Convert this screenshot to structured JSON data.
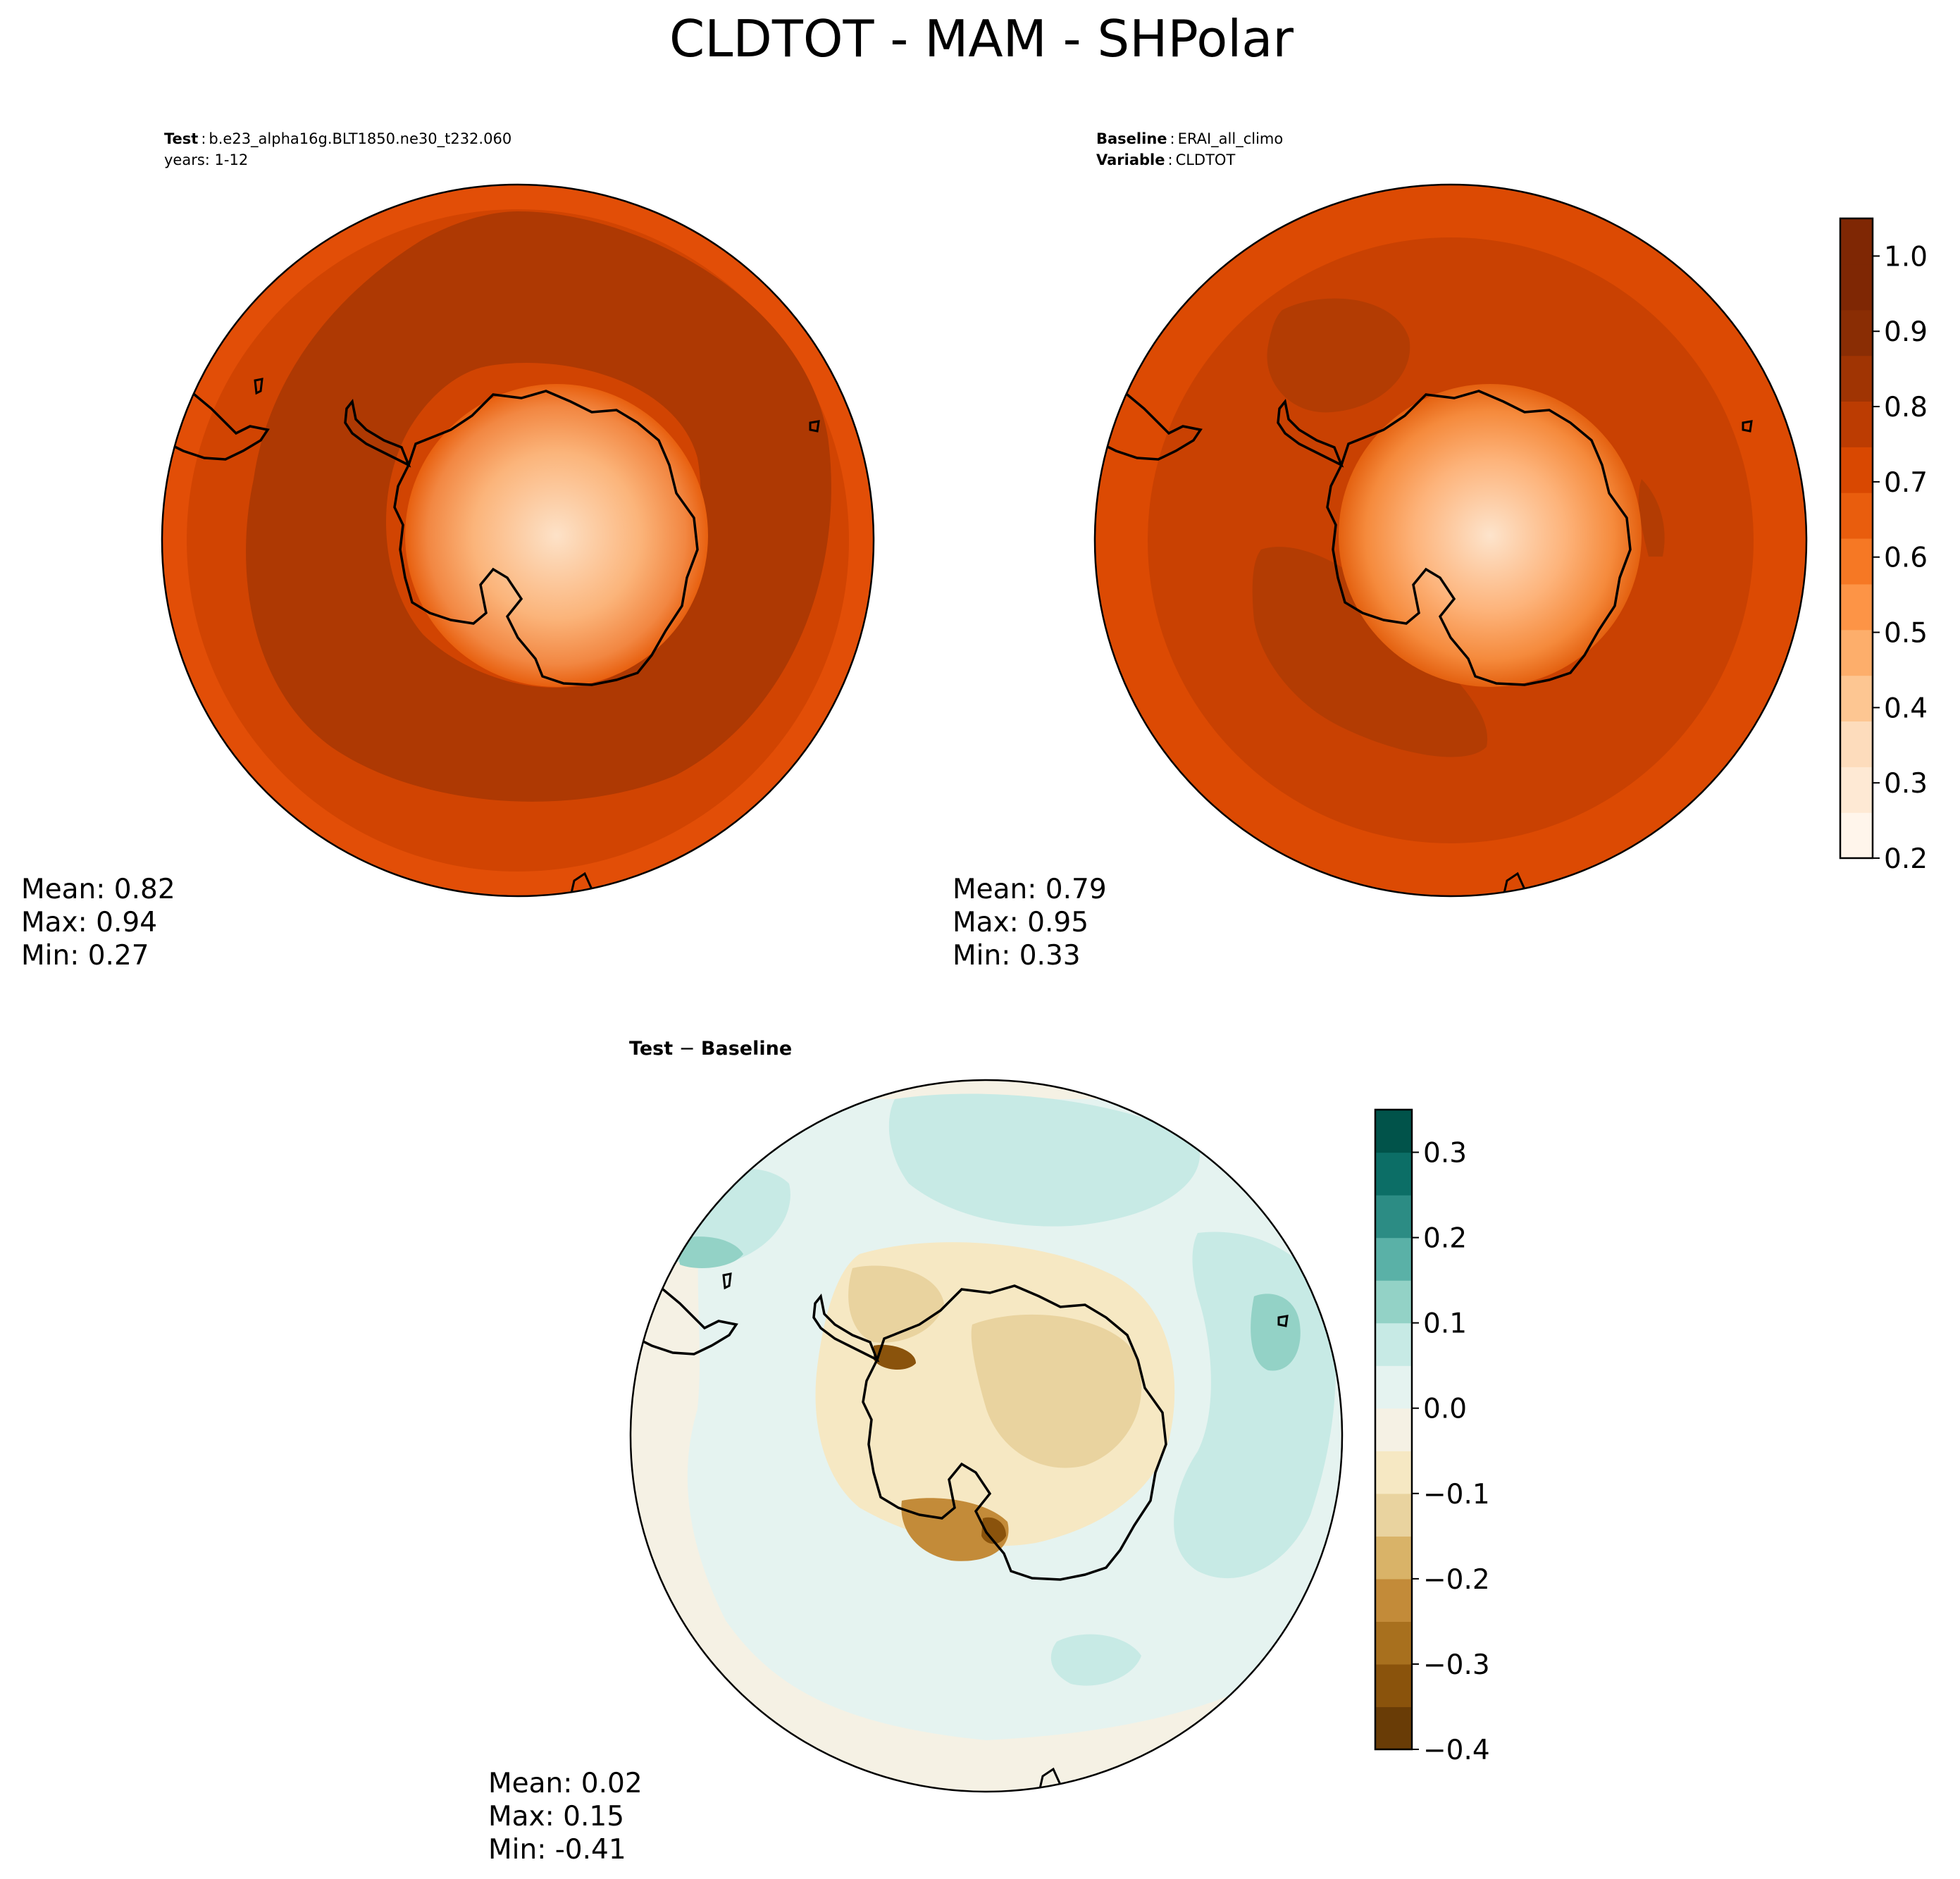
{
  "title": "CLDTOT - MAM - SHPolar",
  "panels": {
    "test": {
      "label": "Test",
      "sep": ":",
      "case": "b.e23_alpha16g.BLT1850.ne30_t232.060",
      "years": "years: 1-12",
      "stats": {
        "mean": "Mean:  0.82",
        "max": "Max:  0.94",
        "min": "Min:  0.27"
      }
    },
    "baseline": {
      "label": "Baseline",
      "sep": ":",
      "case": "ERAI_all_climo",
      "var_label": "Variable",
      "var_name": "CLDTOT",
      "stats": {
        "mean": "Mean:  0.79",
        "max": "Max:  0.95",
        "min": "Min:  0.33"
      }
    },
    "diff": {
      "title_a": "Test",
      "title_op": " − ",
      "title_b": "Baseline",
      "stats": {
        "mean": "Mean:  0.02",
        "max": "Max:  0.15",
        "min": "Min: -0.41"
      }
    }
  },
  "colorbars": {
    "main": {
      "colormap": "Oranges",
      "ticks": [
        "0.2",
        "0.3",
        "0.4",
        "0.5",
        "0.6",
        "0.7",
        "0.8",
        "0.9",
        "1.0"
      ],
      "tick_values": [
        0.2,
        0.3,
        0.4,
        0.5,
        0.6,
        0.7,
        0.8,
        0.9,
        1.0
      ],
      "range": [
        0.2,
        1.05
      ],
      "colors": [
        "#fff5eb",
        "#fee9d4",
        "#fddcbc",
        "#fdc692",
        "#fdae6b",
        "#fd9446",
        "#f67824",
        "#e95d0d",
        "#d94801",
        "#bc3c02",
        "#a03403",
        "#8a2d04",
        "#7f2704",
        "#7f2704"
      ]
    },
    "diff": {
      "colormap": "BrBG",
      "ticks": [
        "−0.4",
        "−0.3",
        "−0.2",
        "−0.1",
        "0.0",
        "0.1",
        "0.2",
        "0.3"
      ],
      "tick_values": [
        -0.4,
        -0.3,
        -0.2,
        -0.1,
        0.0,
        0.1,
        0.2,
        0.3
      ],
      "range": [
        -0.4,
        0.35
      ],
      "colors": [
        "#693c06",
        "#8a530c",
        "#a8701e",
        "#c38b39",
        "#d9b368",
        "#e9d39f",
        "#f6e8c3",
        "#f5f1e4",
        "#e5f3f0",
        "#c7eae5",
        "#93d2c6",
        "#5ab1a7",
        "#2c8c84",
        "#0c6e66",
        "#01534a"
      ]
    }
  },
  "map_colors": {
    "test": {
      "outer": "#e24e07",
      "ring": "#d14402",
      "band": "#ae3903",
      "ice_coast": "#f28742",
      "ice_mid": "#fbb47a",
      "ice_high": "#fde2c8"
    },
    "baseline": {
      "outer": "#dc4a03",
      "ring": "#c94102",
      "band": "#b33c03",
      "ice_coast": "#f58a3c",
      "ice_mid": "#fdb37a",
      "ice_high": "#fde4cc"
    },
    "diff": {
      "outer": "#f5f1e4",
      "ring": "#e5f3f0",
      "band": "#c7eae5",
      "pos": "#93d2c6",
      "neg1": "#e9d39f",
      "neg2": "#c38b39",
      "neg3": "#8a530c"
    },
    "coast": "#000000"
  }
}
